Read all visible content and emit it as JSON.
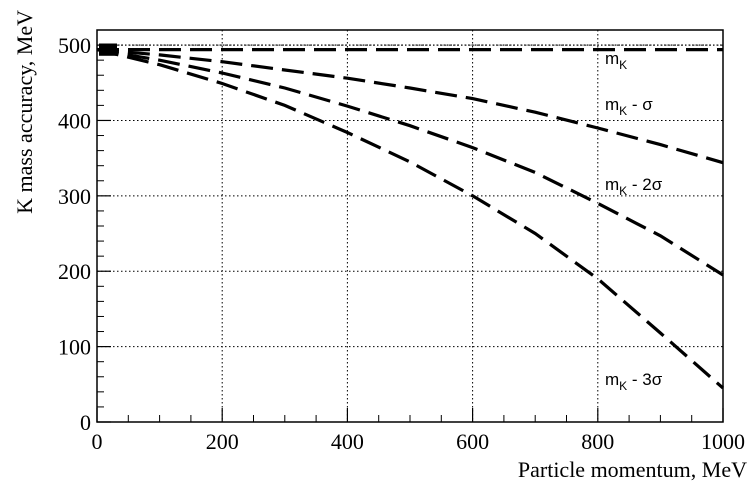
{
  "chart_data": {
    "type": "line",
    "title": "",
    "xlabel": "Particle momentum, MeV",
    "ylabel": "K mass accuracy, MeV",
    "xlim": [
      0,
      1000
    ],
    "ylim": [
      0,
      520
    ],
    "x_ticks": [
      "0",
      "200",
      "400",
      "600",
      "800",
      "1000"
    ],
    "y_ticks": [
      "0",
      "100",
      "200",
      "300",
      "400",
      "500"
    ],
    "grid": true,
    "reference_line": 500,
    "series": [
      {
        "label_main": "m",
        "label_sub": "K",
        "label_suffix": "",
        "x": [
          0,
          100,
          200,
          300,
          400,
          500,
          600,
          700,
          800,
          900,
          1000
        ],
        "values": [
          494,
          494,
          494,
          494,
          494,
          494,
          494,
          494,
          494,
          494,
          494
        ]
      },
      {
        "label_main": "m",
        "label_sub": "K",
        "label_suffix": " - σ",
        "x": [
          0,
          100,
          200,
          300,
          400,
          500,
          600,
          700,
          800,
          900,
          1000
        ],
        "values": [
          494,
          487,
          478,
          467,
          456,
          443,
          429,
          411,
          390,
          368,
          344
        ]
      },
      {
        "label_main": "m",
        "label_sub": "K",
        "label_suffix": " - 2σ",
        "x": [
          0,
          100,
          200,
          300,
          400,
          500,
          600,
          700,
          800,
          900,
          1000
        ],
        "values": [
          494,
          480,
          463,
          443,
          419,
          393,
          364,
          331,
          290,
          247,
          195
        ]
      },
      {
        "label_main": "m",
        "label_sub": "K",
        "label_suffix": " - 3σ",
        "x": [
          0,
          100,
          200,
          300,
          400,
          500,
          600,
          700,
          800,
          900,
          1000
        ],
        "values": [
          494,
          474,
          449,
          420,
          384,
          345,
          300,
          250,
          190,
          118,
          45
        ]
      }
    ]
  }
}
